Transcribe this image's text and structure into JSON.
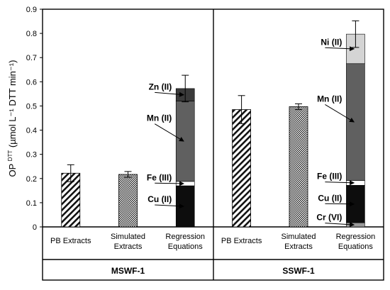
{
  "chart_data": {
    "type": "bar",
    "ylabel": "OP",
    "ylabel_sup": "DTT",
    "ylabel_units": " (µmol L⁻¹ DTT min⁻¹)",
    "ylim": [
      0,
      0.9
    ],
    "yticks": [
      "0",
      "0.1",
      "0.2",
      "0.3",
      "0.4",
      "0.5",
      "0.6",
      "0.7",
      "0.8",
      "0.9"
    ],
    "grid": false,
    "panels": [
      {
        "name": "MSWF-1",
        "categories": [
          {
            "lines": [
              "PB Extracts"
            ]
          },
          {
            "lines": [
              "Simulated",
              "Extracts"
            ]
          },
          {
            "lines": [
              "Regression",
              "Equations"
            ]
          }
        ],
        "bars": [
          {
            "category": 0,
            "style": "diagonal-hatch",
            "value": 0.222,
            "error": 0.035
          },
          {
            "category": 1,
            "style": "checker",
            "value": 0.217,
            "error": 0.012
          },
          {
            "category": 2,
            "style": "stacked",
            "error": 0.055,
            "segments": [
              {
                "label": "Cu (II)",
                "value": 0.17,
                "fill": "#0d0d0d"
              },
              {
                "label": "Fe (III)",
                "value": 0.018,
                "fill": "#ffffff"
              },
              {
                "label": "Mn (II)",
                "value": 0.332,
                "fill": "#606060"
              },
              {
                "label": "Zn (II)",
                "value": 0.052,
                "fill": "#3a3a3a"
              }
            ]
          }
        ]
      },
      {
        "name": "SSWF-1",
        "categories": [
          {
            "lines": [
              "PB Extracts"
            ]
          },
          {
            "lines": [
              "Simulated",
              "Extracts"
            ]
          },
          {
            "lines": [
              "Regression",
              "Equations"
            ]
          }
        ],
        "bars": [
          {
            "category": 0,
            "style": "diagonal-hatch",
            "value": 0.485,
            "error": 0.058
          },
          {
            "category": 1,
            "style": "checker",
            "value": 0.497,
            "error": 0.012
          },
          {
            "category": 2,
            "style": "stacked",
            "error": 0.055,
            "segments": [
              {
                "label": "Cr (VI)",
                "value": 0.017,
                "fill": "#9a9a9a"
              },
              {
                "label": "Cu (II)",
                "value": 0.155,
                "fill": "#0d0d0d"
              },
              {
                "label": "Fe (III)",
                "value": 0.02,
                "fill": "#ffffff"
              },
              {
                "label": "Mn (II)",
                "value": 0.483,
                "fill": "#606060"
              },
              {
                "label": "Ni (II)",
                "value": 0.122,
                "fill": "#d4d4d4"
              }
            ]
          }
        ]
      }
    ],
    "annotations": [
      {
        "panel": 0,
        "label": "Zn (II)",
        "value": 0.55
      },
      {
        "panel": 0,
        "label": "Mn (II)",
        "value": 0.42
      },
      {
        "panel": 0,
        "label": "Fe (III)",
        "value": 0.175
      },
      {
        "panel": 0,
        "label": "Cu (II)",
        "value": 0.085
      },
      {
        "panel": 1,
        "label": "Ni (II)",
        "value": 0.735
      },
      {
        "panel": 1,
        "label": "Mn (II)",
        "value": 0.5
      },
      {
        "panel": 1,
        "label": "Fe (III)",
        "value": 0.18
      },
      {
        "panel": 1,
        "label": "Cu (II)",
        "value": 0.09
      },
      {
        "panel": 1,
        "label": "Cr (VI)",
        "value": 0.01
      }
    ]
  }
}
